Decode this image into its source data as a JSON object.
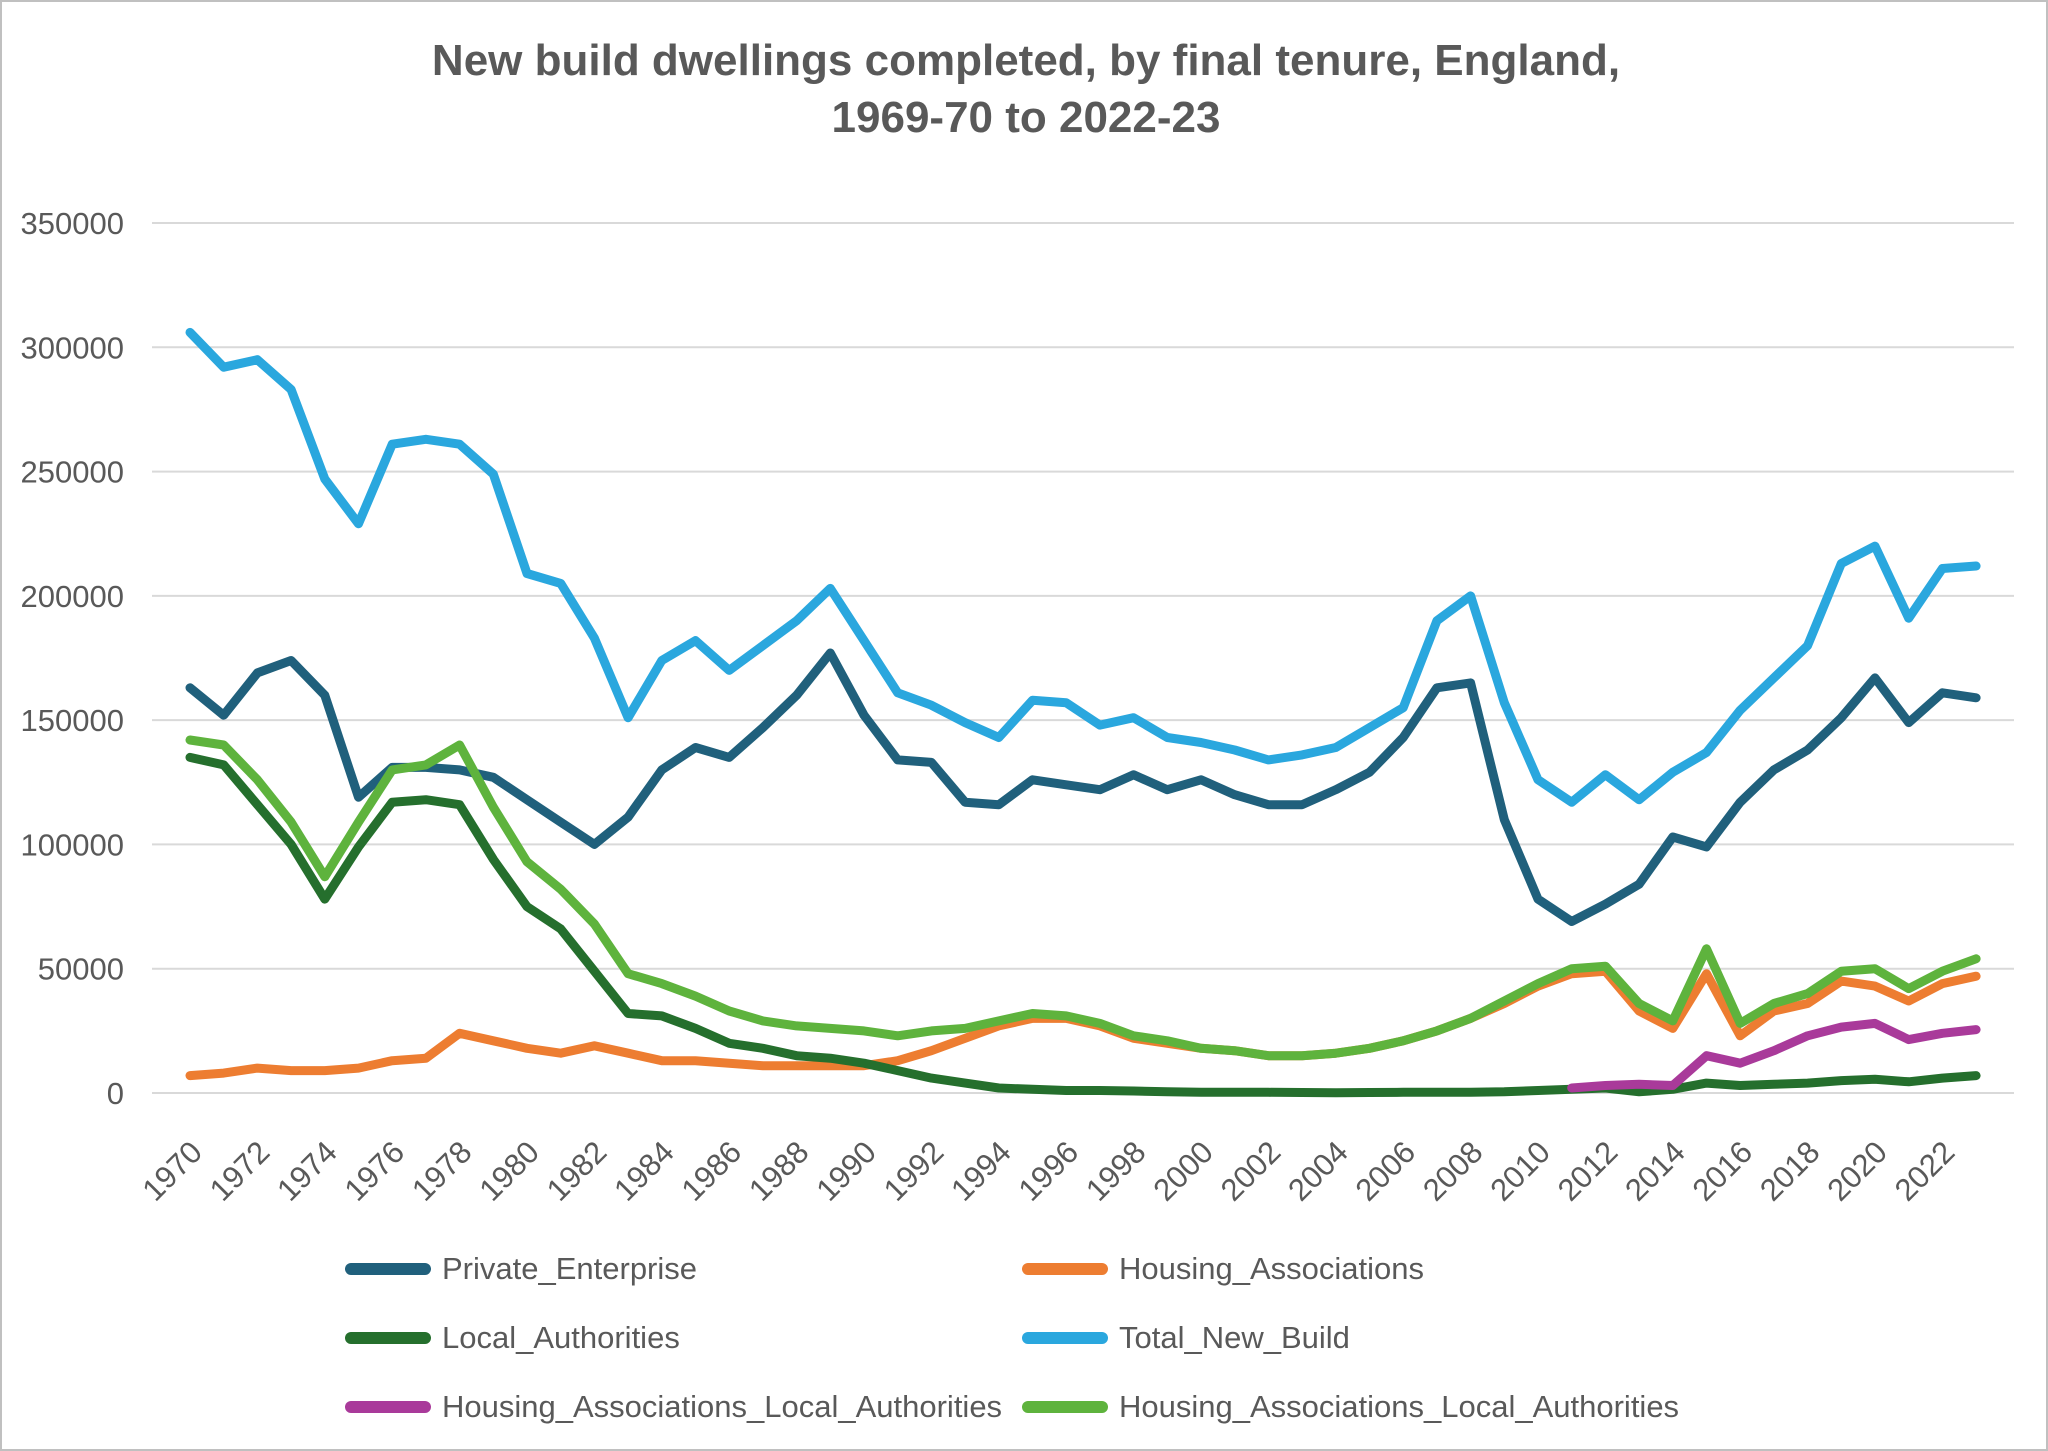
{
  "window": {
    "background": "#ffffff",
    "border_color": "#c0c0c0"
  },
  "title": {
    "line1": "New build dwellings completed, by final tenure, England,",
    "line2": "1969-70 to 2022-23",
    "color": "#595959"
  },
  "axes": {
    "y_tick_labels": [
      "0",
      "50000",
      "100000",
      "150000",
      "200000",
      "250000",
      "300000",
      "350000"
    ],
    "x_tick_labels": [
      "1970",
      "1972",
      "1974",
      "1976",
      "1978",
      "1980",
      "1982",
      "1984",
      "1986",
      "1988",
      "1990",
      "1992",
      "1994",
      "1996",
      "1998",
      "2000",
      "2002",
      "2004",
      "2006",
      "2008",
      "2010",
      "2012",
      "2014",
      "2016",
      "2018",
      "2020",
      "2022"
    ],
    "label_color": "#595959",
    "gridline_color": "#d9d9d9"
  },
  "chart_data": {
    "type": "line",
    "x": [
      1970,
      1971,
      1972,
      1973,
      1974,
      1975,
      1976,
      1977,
      1978,
      1979,
      1980,
      1981,
      1982,
      1983,
      1984,
      1985,
      1986,
      1987,
      1988,
      1989,
      1990,
      1991,
      1992,
      1993,
      1994,
      1995,
      1996,
      1997,
      1998,
      1999,
      2000,
      2001,
      2002,
      2003,
      2004,
      2005,
      2006,
      2007,
      2008,
      2009,
      2010,
      2011,
      2012,
      2013,
      2014,
      2015,
      2016,
      2017,
      2018,
      2019,
      2020,
      2021,
      2022,
      2023
    ],
    "x_note": "financial years 1969-70 to 2022-23 labelled by end year, ticks every 2 years",
    "title": "New build dwellings completed, by final tenure, England, 1969-70 to 2022-23",
    "xlabel": "",
    "ylabel": "",
    "ylim": [
      0,
      350000
    ],
    "y_ticks": [
      0,
      50000,
      100000,
      150000,
      200000,
      250000,
      300000,
      350000
    ],
    "grid": true,
    "legend_position": "bottom",
    "series": [
      {
        "name": "Private_Enterprise",
        "color": "#20607c",
        "values": [
          163000,
          152000,
          169000,
          174000,
          160000,
          119000,
          131000,
          131000,
          130000,
          127000,
          118000,
          109000,
          100000,
          111000,
          130000,
          139000,
          135000,
          147000,
          160000,
          177000,
          152000,
          134000,
          133000,
          117000,
          116000,
          126000,
          124000,
          122000,
          128000,
          122000,
          126000,
          120000,
          116000,
          116000,
          122000,
          129000,
          143000,
          163000,
          165000,
          110000,
          78000,
          69000,
          76000,
          84000,
          103000,
          99000,
          117000,
          130000,
          138000,
          151000,
          167000,
          149000,
          161000,
          159000
        ]
      },
      {
        "name": "Housing_Associations",
        "color": "#ed7d31",
        "values": [
          7000,
          8000,
          10000,
          9000,
          9000,
          10000,
          13000,
          14000,
          24000,
          21000,
          18000,
          16000,
          19000,
          16000,
          13000,
          13000,
          12000,
          11000,
          11000,
          11000,
          11000,
          13000,
          17000,
          22000,
          27000,
          30000,
          30000,
          27000,
          22000,
          20000,
          18000,
          17000,
          15000,
          15000,
          16000,
          18000,
          21000,
          25000,
          30000,
          36000,
          43000,
          48000,
          49000,
          33000,
          26000,
          48000,
          23000,
          33000,
          36000,
          45000,
          43000,
          37000,
          44000,
          47000
        ]
      },
      {
        "name": "Local_Authorities",
        "color": "#256f2d",
        "values": [
          135000,
          132000,
          116000,
          100000,
          78000,
          99000,
          117000,
          118000,
          116000,
          94000,
          75000,
          66000,
          49000,
          32000,
          31000,
          26000,
          20000,
          18000,
          15000,
          14000,
          12000,
          9000,
          6000,
          4000,
          2000,
          1500,
          1000,
          1000,
          800,
          500,
          300,
          300,
          300,
          200,
          100,
          200,
          300,
          300,
          300,
          500,
          1000,
          1500,
          2000,
          500,
          1500,
          4000,
          3000,
          3500,
          4000,
          5000,
          5500,
          4500,
          6000,
          7000
        ]
      },
      {
        "name": "Total_New_Build",
        "color": "#2aa7de",
        "values": [
          306000,
          292000,
          295000,
          283000,
          247000,
          229000,
          261000,
          263000,
          261000,
          249000,
          209000,
          205000,
          183000,
          151000,
          174000,
          182000,
          170000,
          180000,
          190000,
          203000,
          182000,
          161000,
          156000,
          149000,
          143000,
          158000,
          157000,
          148000,
          151000,
          143000,
          141000,
          138000,
          134000,
          136000,
          139000,
          147000,
          155000,
          190000,
          200000,
          157000,
          126000,
          117000,
          128000,
          118000,
          129000,
          137000,
          154000,
          167000,
          180000,
          213000,
          220000,
          191000,
          211000,
          212000
        ]
      },
      {
        "name": "Housing_Associations_Local_Authorities",
        "color": "#a93a9a",
        "values": [
          null,
          null,
          null,
          null,
          null,
          null,
          null,
          null,
          null,
          null,
          null,
          null,
          null,
          null,
          null,
          null,
          null,
          null,
          null,
          null,
          null,
          null,
          null,
          null,
          null,
          null,
          null,
          null,
          null,
          null,
          null,
          null,
          null,
          null,
          null,
          null,
          null,
          null,
          null,
          null,
          null,
          2000,
          3000,
          3500,
          3000,
          15000,
          12000,
          17000,
          23000,
          26500,
          28000,
          21500,
          24000,
          25500
        ]
      },
      {
        "name": "Housing_Associations_Local_Authorities",
        "color": "#5eb33d",
        "values": [
          142000,
          140000,
          126000,
          109000,
          87000,
          109000,
          130000,
          132000,
          140000,
          115000,
          93000,
          82000,
          68000,
          48000,
          44000,
          39000,
          33000,
          29000,
          27000,
          26000,
          25000,
          23000,
          25000,
          26000,
          29000,
          32000,
          31000,
          28000,
          23000,
          21000,
          18000,
          17000,
          15000,
          15000,
          16000,
          18000,
          21000,
          25000,
          30000,
          37000,
          44000,
          50000,
          51000,
          36000,
          29000,
          58000,
          28000,
          36000,
          40000,
          49000,
          50000,
          42000,
          49000,
          54000
        ]
      }
    ]
  },
  "legend": {
    "order": [
      0,
      1,
      2,
      3,
      4,
      5
    ]
  }
}
